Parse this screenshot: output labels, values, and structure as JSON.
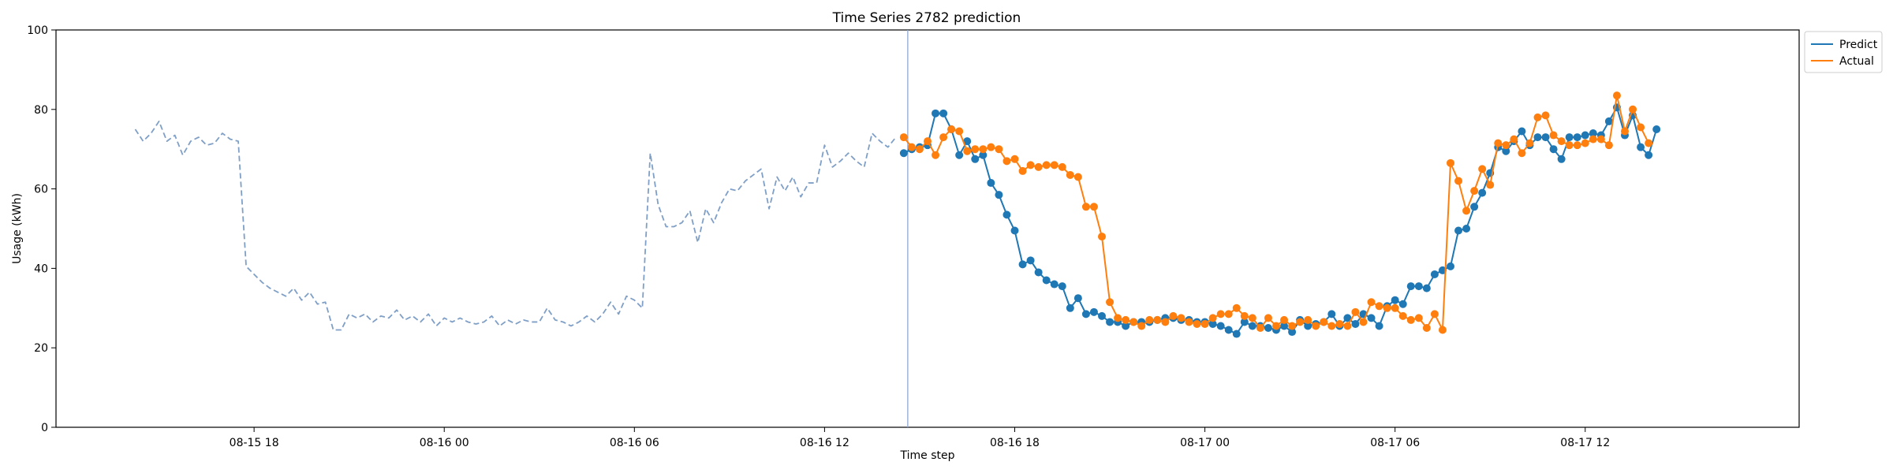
{
  "chart_data": {
    "type": "line",
    "title": "Time Series 2782 prediction",
    "xlabel": "Time step",
    "ylabel": "Usage (kWh)",
    "ylim": [
      0,
      100
    ],
    "xlim": [
      -10,
      210
    ],
    "yticks": [
      0,
      20,
      40,
      60,
      80,
      100
    ],
    "xticks": [
      {
        "x": 15,
        "label": "08-15 18"
      },
      {
        "x": 39,
        "label": "08-16 00"
      },
      {
        "x": 63,
        "label": "08-16 06"
      },
      {
        "x": 87,
        "label": "08-16 12"
      },
      {
        "x": 111,
        "label": "08-16 18"
      },
      {
        "x": 135,
        "label": "08-17 00"
      },
      {
        "x": 159,
        "label": "08-17 06"
      },
      {
        "x": 183,
        "label": "08-17 12"
      }
    ],
    "forecast_start_x": 97.5,
    "legend": {
      "position": "top-right",
      "entries": [
        "Predict",
        "Actual"
      ]
    },
    "colors": {
      "history": "#7f9fc6",
      "predict": "#1f77b4",
      "actual": "#ff7f0e",
      "divider": "#8fa8d4"
    },
    "series": [
      {
        "name": "",
        "style": "dashed",
        "x_start": 0,
        "values": [
          75,
          72,
          74,
          77,
          72,
          73.5,
          68.5,
          72,
          73,
          71,
          71.5,
          74,
          72.5,
          72,
          40.5,
          38.5,
          36.5,
          35,
          34,
          33,
          35,
          32,
          34,
          31,
          31.5,
          24.5,
          24.5,
          28.5,
          27.5,
          28.5,
          26.5,
          28,
          27.5,
          29.5,
          27,
          28,
          26.5,
          28.5,
          25.5,
          27.5,
          26.5,
          27.5,
          26.5,
          26,
          26.5,
          28,
          25.5,
          27,
          26,
          27,
          26.5,
          26.5,
          30,
          27,
          26.5,
          25.5,
          26.5,
          28,
          26.5,
          28.5,
          31.5,
          28.5,
          33,
          32,
          30,
          69,
          56,
          50.5,
          50.5,
          51.5,
          54.5,
          46.5,
          55,
          51.5,
          56.5,
          60,
          59.5,
          62,
          63.5,
          65,
          55,
          63,
          59.5,
          63,
          58,
          61.5,
          61.5,
          71,
          65.5,
          67,
          69,
          67,
          65.5,
          74,
          72,
          70.5,
          73
        ]
      },
      {
        "name": "Predict",
        "style": "line-marker",
        "x_start": 97,
        "values": [
          69,
          70,
          70.5,
          71,
          79,
          79,
          75,
          68.5,
          72,
          67.5,
          68.5,
          61.5,
          58.5,
          53.5,
          49.5,
          41,
          42,
          39,
          37,
          36,
          35.5,
          30,
          32.5,
          28.5,
          29,
          28,
          26.5,
          26.5,
          25.5,
          26.5,
          26.5,
          26.5,
          27,
          27.5,
          27.5,
          27,
          27,
          26.5,
          26.5,
          26,
          25.5,
          24.5,
          23.5,
          26.5,
          25.5,
          25.5,
          25,
          24.5,
          25.5,
          24,
          27,
          25.5,
          26,
          26.5,
          28.5,
          25.5,
          27.5,
          26,
          28.5,
          27.5,
          25.5,
          30.5,
          32,
          31,
          35.5,
          35.5,
          35,
          38.5,
          39.5,
          40.5,
          49.5,
          50,
          55.5,
          59,
          64,
          70.5,
          69.5,
          72,
          74.5,
          71,
          73,
          73,
          70,
          67.5,
          73,
          73,
          73.5,
          74,
          73.5,
          77,
          80.5,
          73.5,
          78.5,
          70.5,
          68.5,
          75
        ]
      },
      {
        "name": "Actual",
        "style": "line-marker",
        "x_start": 97,
        "values": [
          73,
          70.5,
          70,
          72,
          68.5,
          73,
          75,
          74.5,
          69.5,
          70,
          70,
          70.5,
          70,
          67,
          67.5,
          64.5,
          66,
          65.5,
          66,
          66,
          65.5,
          63.5,
          63,
          55.5,
          55.5,
          48,
          31.5,
          27.5,
          27,
          26.5,
          25.5,
          27,
          27,
          26.5,
          28,
          27.5,
          26.5,
          26,
          26,
          27.5,
          28.5,
          28.5,
          30,
          28,
          27.5,
          25,
          27.5,
          25.5,
          27,
          25.5,
          26.5,
          27,
          25.5,
          26.5,
          25.5,
          26,
          25.5,
          29,
          26.5,
          31.5,
          30.5,
          30,
          30,
          28,
          27,
          27.5,
          25,
          28.5,
          24.5,
          66.5,
          62,
          54.5,
          59.5,
          65,
          61,
          71.5,
          71,
          72.5,
          69,
          71.5,
          78,
          78.5,
          73.5,
          72,
          71,
          71,
          71.5,
          72.5,
          72.5,
          71,
          83.5,
          74.5,
          80,
          75.5,
          71.5
        ]
      }
    ]
  }
}
